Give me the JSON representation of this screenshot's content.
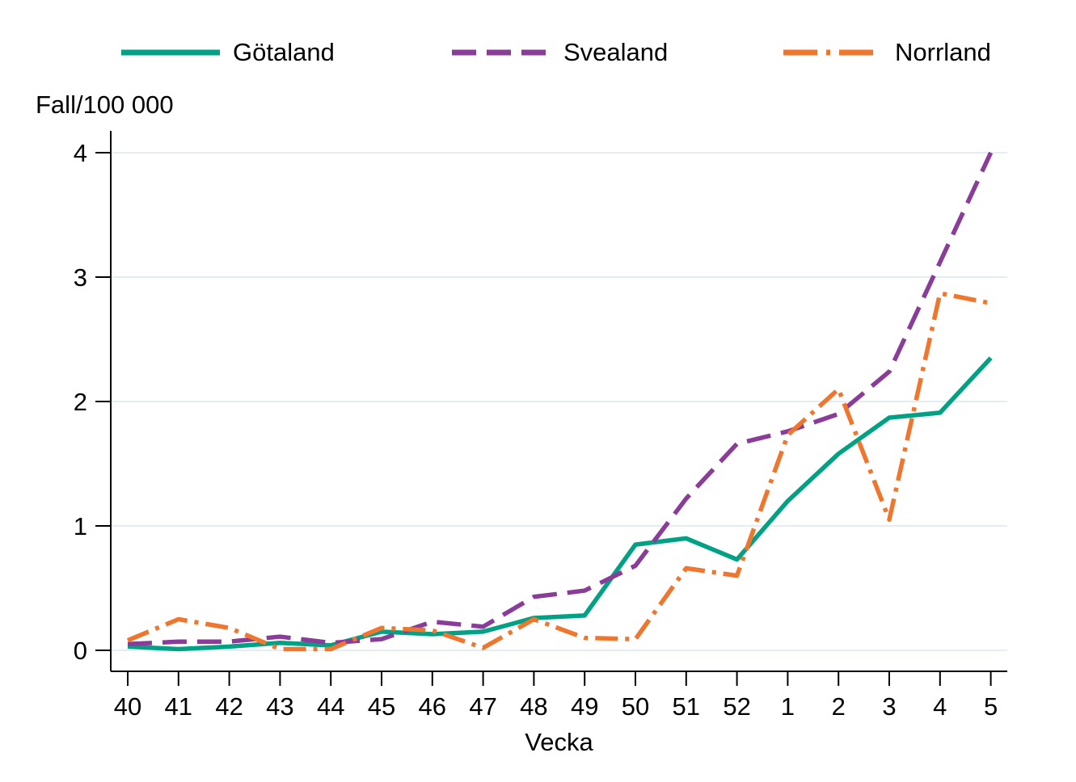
{
  "axis_titles": {
    "y": "Fall/100 000",
    "x": "Vecka"
  },
  "chart_data": {
    "type": "line",
    "title": "",
    "xlabel": "Vecka",
    "ylabel": "Fall/100 000",
    "x_tick_labels": [
      "40",
      "41",
      "42",
      "43",
      "44",
      "45",
      "46",
      "47",
      "48",
      "49",
      "50",
      "51",
      "52",
      "1",
      "2",
      "3",
      "4",
      "5"
    ],
    "y_ticks": [
      0,
      1,
      2,
      3,
      4
    ],
    "ylim": [
      0,
      4
    ],
    "grid": "horizontal-light",
    "legend_position": "top",
    "colors": {
      "grid": "#e4edf2",
      "axis": "#000000",
      "text": "#000000",
      "background": "#ffffff"
    },
    "series": [
      {
        "name": "Götaland",
        "color": "#00a184",
        "dash": "solid",
        "values": [
          0.03,
          0.01,
          0.03,
          0.06,
          0.04,
          0.15,
          0.13,
          0.15,
          0.26,
          0.28,
          0.85,
          0.9,
          0.73,
          1.2,
          1.58,
          1.87,
          1.91,
          2.35
        ]
      },
      {
        "name": "Svealand",
        "color": "#8a3d98",
        "dash": "dashed",
        "values": [
          0.05,
          0.07,
          0.07,
          0.11,
          0.06,
          0.09,
          0.23,
          0.19,
          0.43,
          0.48,
          0.68,
          1.22,
          1.66,
          1.76,
          1.9,
          2.24,
          3.12,
          4.0
        ]
      },
      {
        "name": "Norrland",
        "color": "#f0762e",
        "dash": "dash-dot",
        "values": [
          0.08,
          0.25,
          0.18,
          0.01,
          0.01,
          0.18,
          0.16,
          0.02,
          0.25,
          0.1,
          0.09,
          0.66,
          0.6,
          1.73,
          2.1,
          1.05,
          2.87,
          2.79
        ]
      }
    ]
  }
}
